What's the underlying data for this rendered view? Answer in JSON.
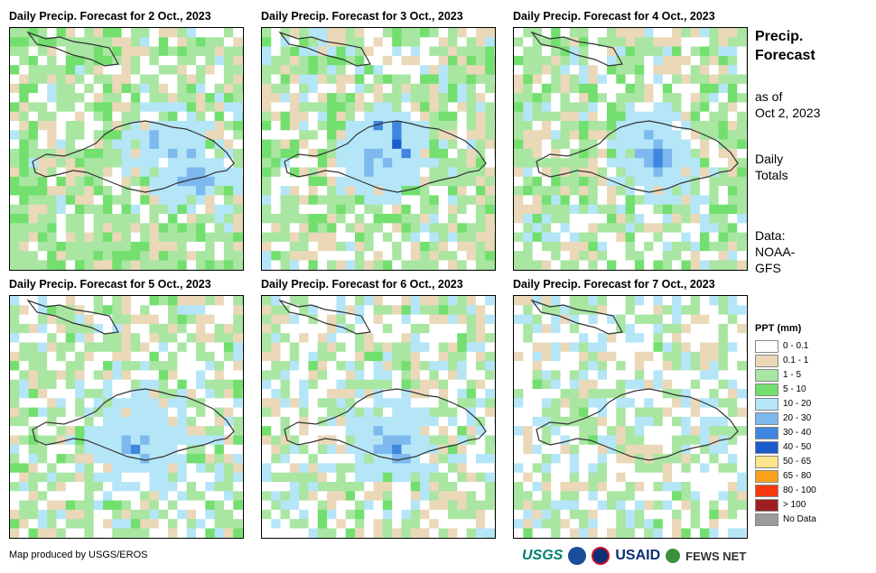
{
  "panels": [
    {
      "title": "Daily Precip. Forecast for 2 Oct., 2023",
      "hot": [
        [
          60,
          45,
          3
        ],
        [
          70,
          50,
          3
        ],
        [
          75,
          60,
          2
        ]
      ]
    },
    {
      "title": "Daily Precip. Forecast for 3 Oct., 2023",
      "hot": [
        [
          48,
          48,
          5
        ],
        [
          50,
          46,
          6
        ],
        [
          45,
          52,
          3
        ]
      ]
    },
    {
      "title": "Daily Precip. Forecast for 4 Oct., 2023",
      "hot": [
        [
          55,
          45,
          2
        ],
        [
          58,
          50,
          2
        ]
      ]
    },
    {
      "title": "Daily Precip. Forecast for 5 Oct., 2023",
      "hot": [
        [
          45,
          50,
          2
        ],
        [
          55,
          55,
          2
        ],
        [
          50,
          60,
          2
        ]
      ]
    },
    {
      "title": "Daily Precip. Forecast for 6 Oct., 2023",
      "hot": [
        [
          50,
          55,
          1
        ],
        [
          55,
          58,
          1
        ]
      ]
    },
    {
      "title": "Daily Precip. Forecast for 7 Oct., 2023",
      "hot": []
    }
  ],
  "side": {
    "title_line1": "Precip.",
    "title_line2": "Forecast",
    "asof_line1": "as of",
    "asof_line2": "Oct 2, 2023",
    "totals_line1": "Daily",
    "totals_line2": "Totals",
    "data_line1": "Data:",
    "data_line2": "NOAA-",
    "data_line3": "GFS"
  },
  "legend": {
    "title": "PPT (mm)",
    "items": [
      {
        "label": "0 - 0.1",
        "color": "#ffffff"
      },
      {
        "label": "0.1 - 1",
        "color": "#ead8b8"
      },
      {
        "label": "1 - 5",
        "color": "#a8e6a2"
      },
      {
        "label": "5 - 10",
        "color": "#72df6e"
      },
      {
        "label": "10 - 20",
        "color": "#b4e6f8"
      },
      {
        "label": "20 - 30",
        "color": "#7db8ee"
      },
      {
        "label": "30 - 40",
        "color": "#3f86e0"
      },
      {
        "label": "40 - 50",
        "color": "#1a5ccc"
      },
      {
        "label": "50 - 65",
        "color": "#fbe48a"
      },
      {
        "label": "65 - 80",
        "color": "#f9a11a"
      },
      {
        "label": "80 - 100",
        "color": "#f63a0e"
      },
      {
        "label": "> 100",
        "color": "#9e1f1f"
      },
      {
        "label": "No Data",
        "color": "#9b9b9b"
      }
    ]
  },
  "credit": "Map produced by USGS/EROS",
  "logos": {
    "usgs": "USGS",
    "usaid": "USAID",
    "fews": "FEWS NET"
  }
}
